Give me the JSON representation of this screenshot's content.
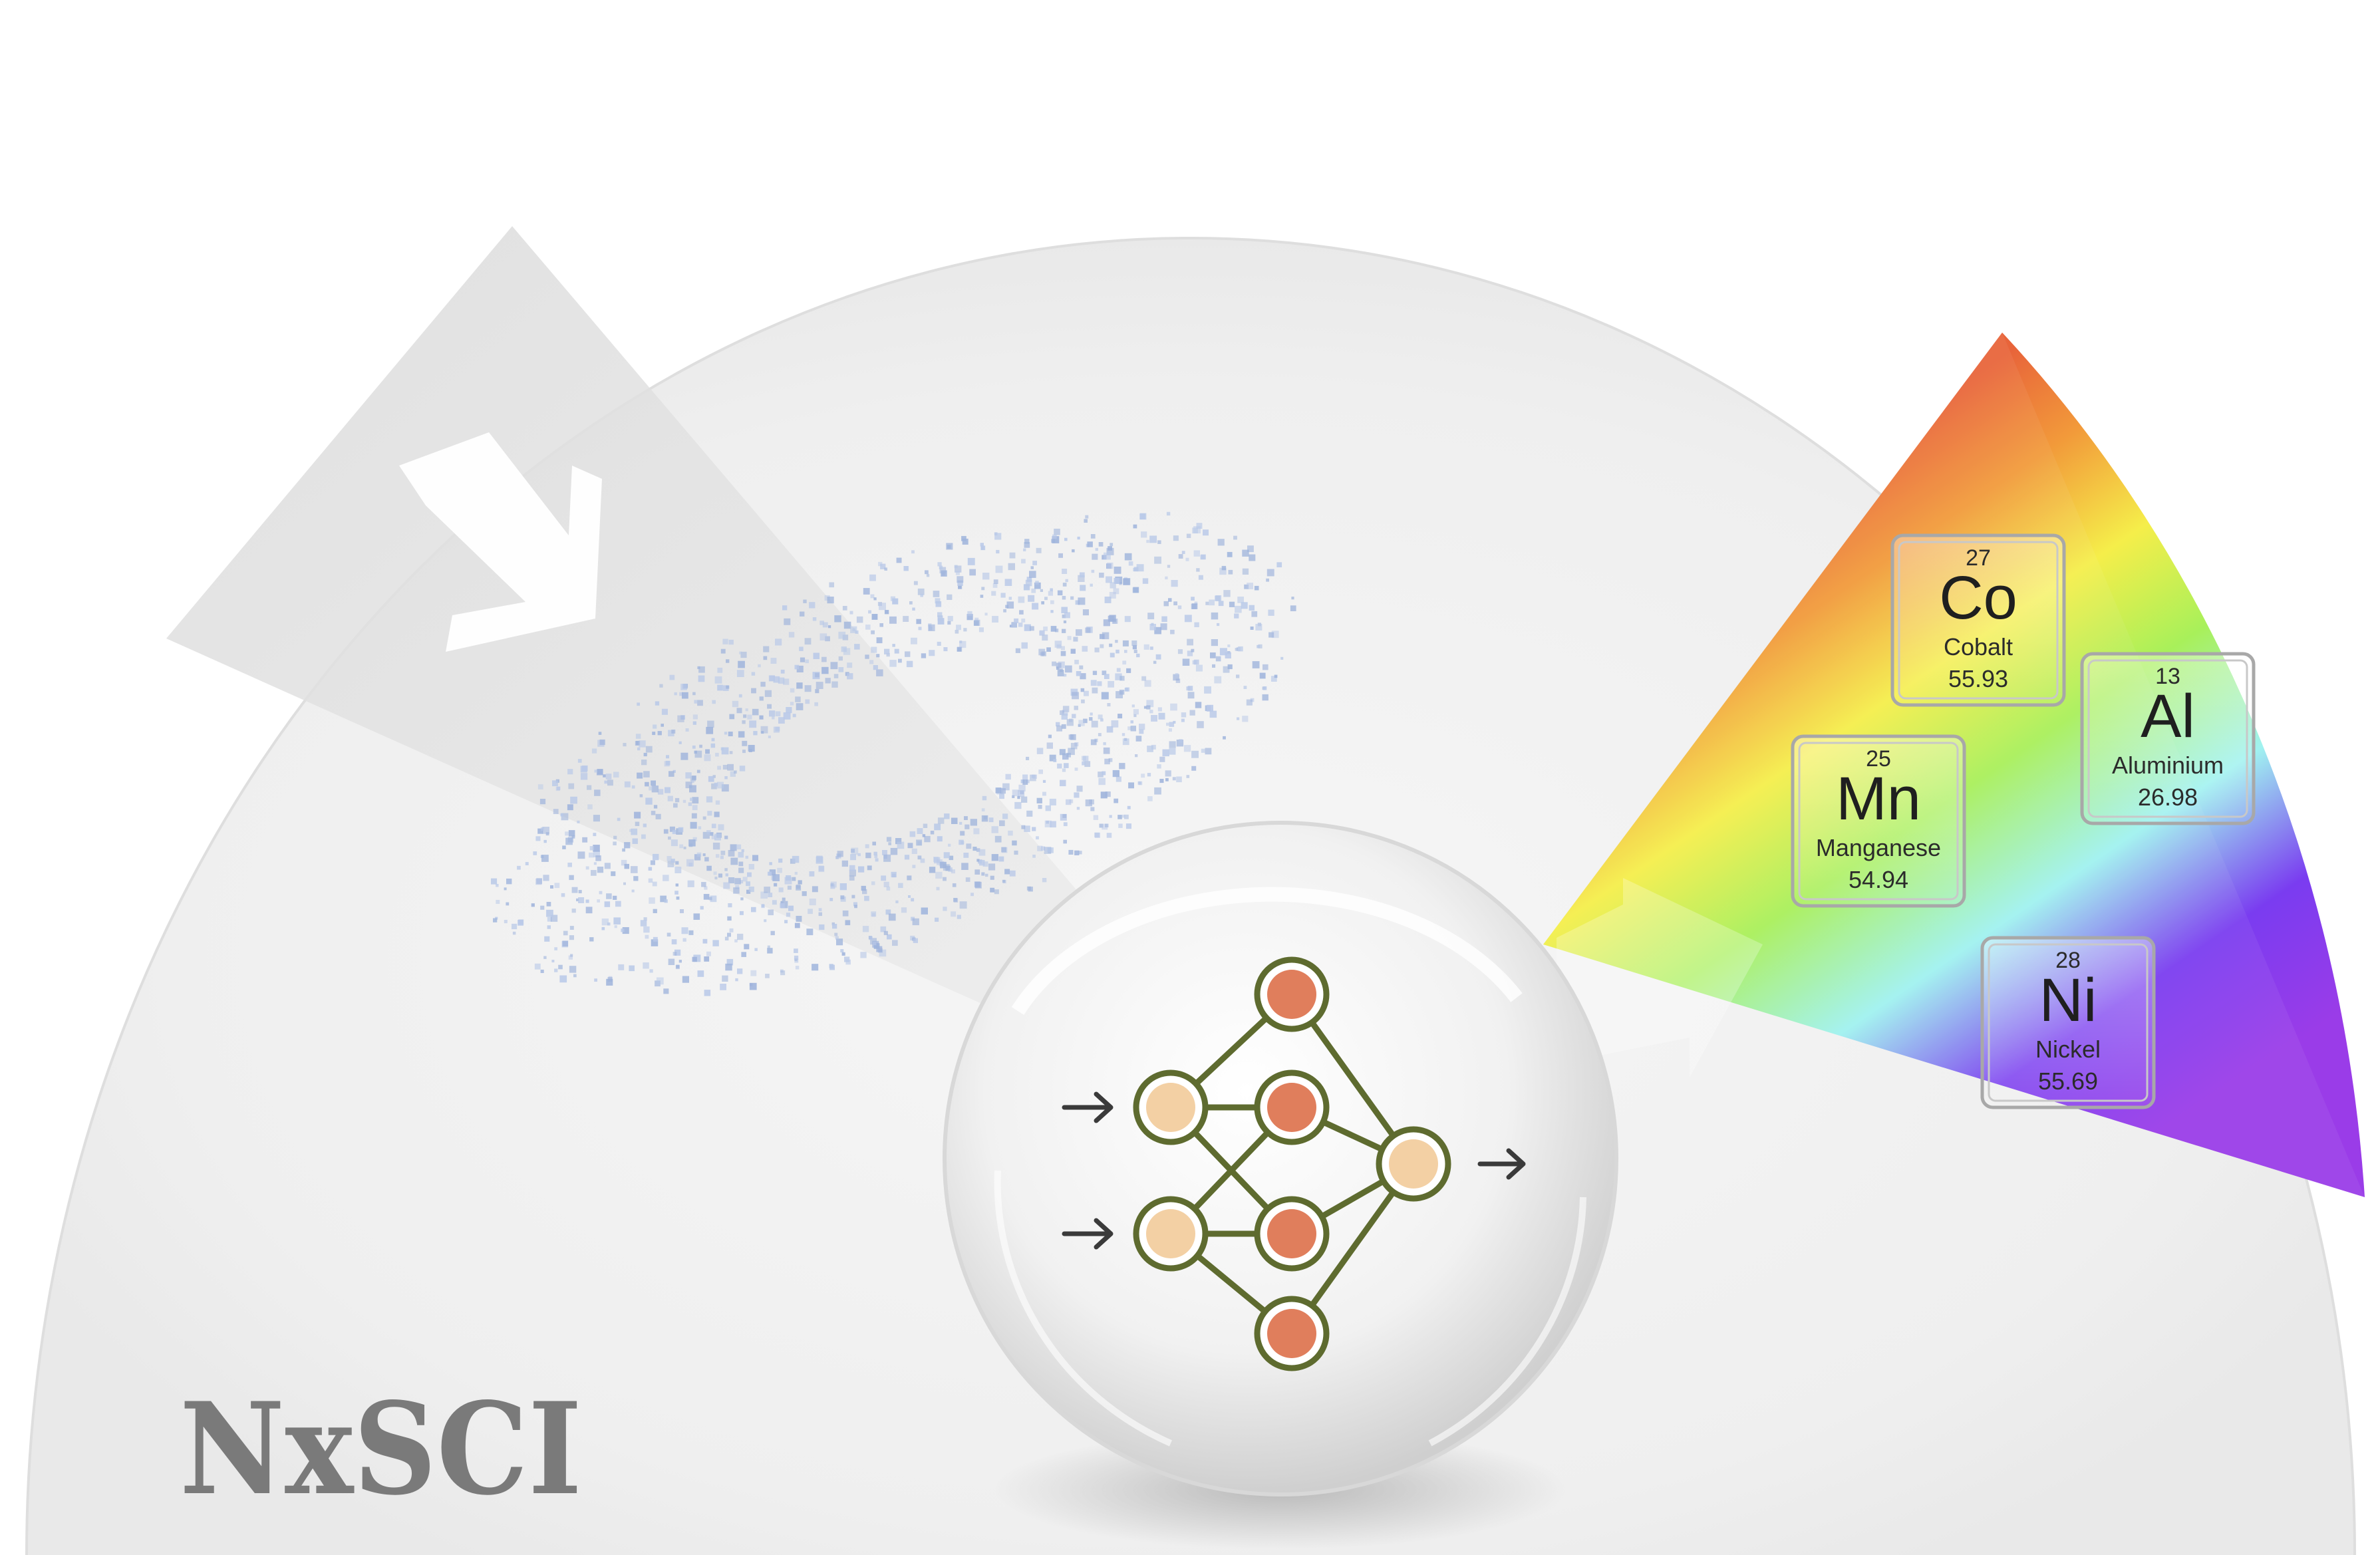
{
  "logo": {
    "text": "NxSCI"
  },
  "network": {
    "input_arrow_count": 2,
    "output_arrow_count": 1,
    "layers": [
      2,
      4,
      1
    ],
    "colors": {
      "input_node": "#f3d0a4",
      "hidden_node": "#e07e5c",
      "output_node": "#f3d0a4",
      "edge": "#5e6b2f"
    }
  },
  "spectrum": {
    "colors": [
      "#e8643a",
      "#f29a3a",
      "#f5ee4a",
      "#a8f05a",
      "#a0f2f0",
      "#7a3cf0",
      "#9a3ce8"
    ]
  },
  "elements": [
    {
      "id": "co",
      "number": "27",
      "symbol": "Co",
      "name": "Cobalt",
      "mass": "55.93"
    },
    {
      "id": "al",
      "number": "13",
      "symbol": "Al",
      "name": "Aluminium",
      "mass": "26.98"
    },
    {
      "id": "mn",
      "number": "25",
      "symbol": "Mn",
      "name": "Manganese",
      "mass": "54.94"
    },
    {
      "id": "ni",
      "number": "28",
      "symbol": "Ni",
      "name": "Nickel",
      "mass": "55.69"
    }
  ],
  "icons": {
    "beam_arrow": "arrow-right-down-icon",
    "prism_arrow": "arrow-right-icon"
  }
}
